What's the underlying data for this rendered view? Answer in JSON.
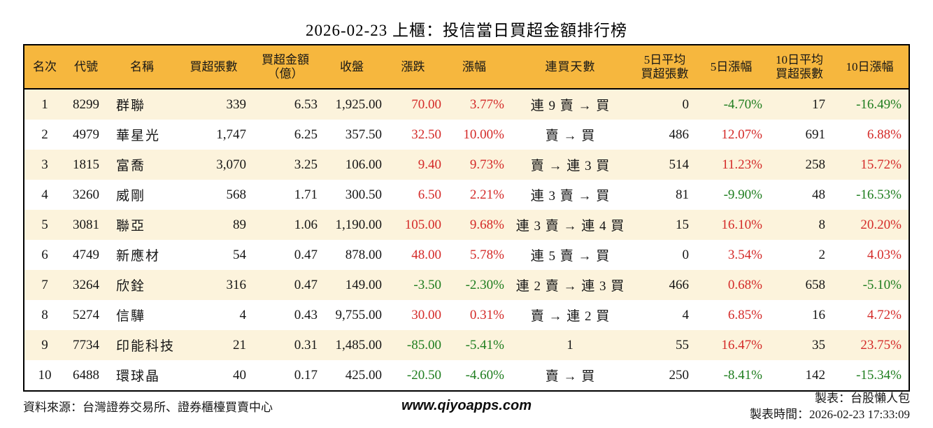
{
  "title": "2026-02-23 上櫃：投信當日買超金額排行榜",
  "colors": {
    "header_bg": "#F6B73E",
    "alt_row_bg": "#FCF3DC",
    "positive_red": "#D42A28",
    "negative_green": "#1E7D1E",
    "border": "#000000"
  },
  "chart_data": {
    "type": "table",
    "title": "2026-02-23 上櫃：投信當日買超金額排行榜",
    "columns": [
      "名次",
      "代號",
      "名稱",
      "買超張數",
      "買超金額\n（億）",
      "收盤",
      "漲跌",
      "漲幅",
      "連買天數",
      "5日平均\n買超張數",
      "5日漲幅",
      "10日平均\n買超張數",
      "10日漲幅"
    ],
    "rows": [
      {
        "rank": "1",
        "code": "8299",
        "name": "群聯",
        "volume": "339",
        "amount": "6.53",
        "close": "1,925.00",
        "change": "70.00",
        "change_pct": "3.77%",
        "streak": "連 9 賣 → 買",
        "avg5": "0",
        "pct5": "-4.70%",
        "avg10": "17",
        "pct10": "-16.49%"
      },
      {
        "rank": "2",
        "code": "4979",
        "name": "華星光",
        "volume": "1,747",
        "amount": "6.25",
        "close": "357.50",
        "change": "32.50",
        "change_pct": "10.00%",
        "streak": "賣 → 買",
        "avg5": "486",
        "pct5": "12.07%",
        "avg10": "691",
        "pct10": "6.88%"
      },
      {
        "rank": "3",
        "code": "1815",
        "name": "富喬",
        "volume": "3,070",
        "amount": "3.25",
        "close": "106.00",
        "change": "9.40",
        "change_pct": "9.73%",
        "streak": "賣 → 連 3 買",
        "avg5": "514",
        "pct5": "11.23%",
        "avg10": "258",
        "pct10": "15.72%"
      },
      {
        "rank": "4",
        "code": "3260",
        "name": "威剛",
        "volume": "568",
        "amount": "1.71",
        "close": "300.50",
        "change": "6.50",
        "change_pct": "2.21%",
        "streak": "連 3 賣 → 買",
        "avg5": "81",
        "pct5": "-9.90%",
        "avg10": "48",
        "pct10": "-16.53%"
      },
      {
        "rank": "5",
        "code": "3081",
        "name": "聯亞",
        "volume": "89",
        "amount": "1.06",
        "close": "1,190.00",
        "change": "105.00",
        "change_pct": "9.68%",
        "streak": "連 3 賣 → 連 4 買",
        "avg5": "15",
        "pct5": "16.10%",
        "avg10": "8",
        "pct10": "20.20%"
      },
      {
        "rank": "6",
        "code": "4749",
        "name": "新應材",
        "volume": "54",
        "amount": "0.47",
        "close": "878.00",
        "change": "48.00",
        "change_pct": "5.78%",
        "streak": "連 5 賣 → 買",
        "avg5": "0",
        "pct5": "3.54%",
        "avg10": "2",
        "pct10": "4.03%"
      },
      {
        "rank": "7",
        "code": "3264",
        "name": "欣銓",
        "volume": "316",
        "amount": "0.47",
        "close": "149.00",
        "change": "-3.50",
        "change_pct": "-2.30%",
        "streak": "連 2 賣 → 連 3 買",
        "avg5": "466",
        "pct5": "0.68%",
        "avg10": "658",
        "pct10": "-5.10%"
      },
      {
        "rank": "8",
        "code": "5274",
        "name": "信驊",
        "volume": "4",
        "amount": "0.43",
        "close": "9,755.00",
        "change": "30.00",
        "change_pct": "0.31%",
        "streak": "賣 → 連 2 買",
        "avg5": "4",
        "pct5": "6.85%",
        "avg10": "16",
        "pct10": "4.72%"
      },
      {
        "rank": "9",
        "code": "7734",
        "name": "印能科技",
        "volume": "21",
        "amount": "0.31",
        "close": "1,485.00",
        "change": "-85.00",
        "change_pct": "-5.41%",
        "streak": "1",
        "avg5": "55",
        "pct5": "16.47%",
        "avg10": "35",
        "pct10": "23.75%"
      },
      {
        "rank": "10",
        "code": "6488",
        "name": "環球晶",
        "volume": "40",
        "amount": "0.17",
        "close": "425.00",
        "change": "-20.50",
        "change_pct": "-4.60%",
        "streak": "賣 → 買",
        "avg5": "250",
        "pct5": "-8.41%",
        "avg10": "142",
        "pct10": "-15.34%"
      }
    ]
  },
  "footer": {
    "source": "資料來源：台灣證券交易所、證券櫃檯買賣中心",
    "website": "www.qiyoapps.com",
    "maker": "製表：台股懶人包",
    "made_at": "製表時間：2026-02-23 17:33:09"
  }
}
